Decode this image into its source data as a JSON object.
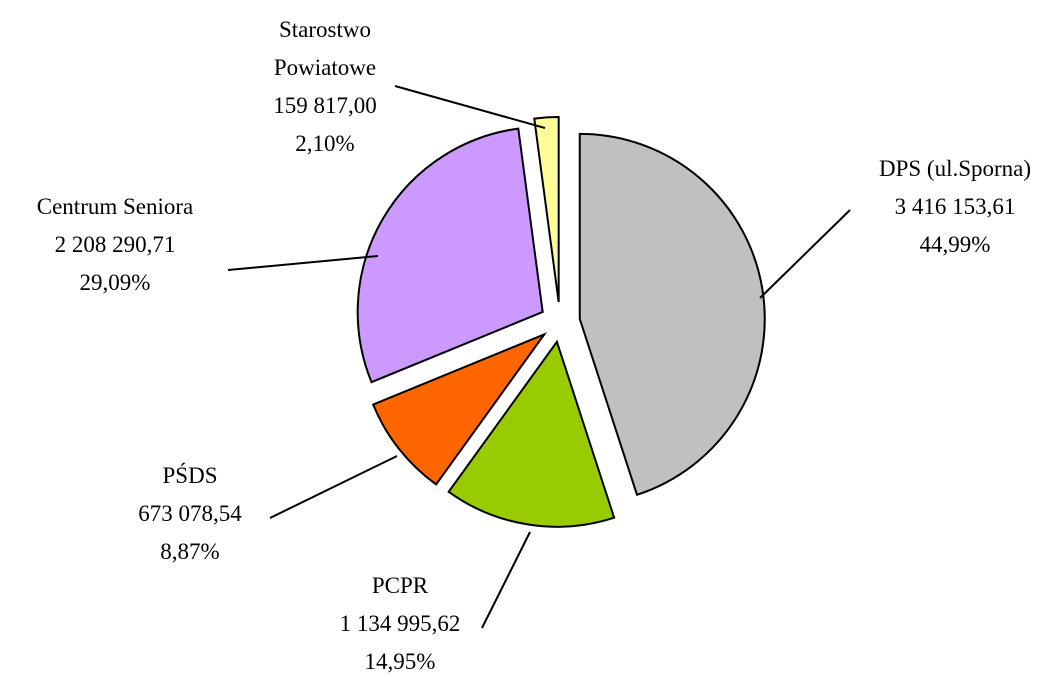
{
  "chart_data": {
    "type": "pie",
    "categories": [
      "DPS (ul.Sporna)",
      "PCPR",
      "PŚDS",
      "Centrum Seniora",
      "Starostwo Powiatowe"
    ],
    "values": [
      3416153.61,
      1134995.62,
      673078.54,
      2208290.71,
      159817.0
    ],
    "value_labels": [
      "3 416 153,61",
      "1 134 995,62",
      "673 078,54",
      "2 208 290,71",
      "159 817,00"
    ],
    "percentages": [
      44.99,
      14.95,
      8.87,
      29.09,
      2.1
    ],
    "percent_labels": [
      "44,99%",
      "14,95%",
      "8,87%",
      "29,09%",
      "2,10%"
    ],
    "colors": [
      "#c0c0c0",
      "#99cc00",
      "#ff6600",
      "#cc99ff",
      "#ffff99"
    ]
  }
}
